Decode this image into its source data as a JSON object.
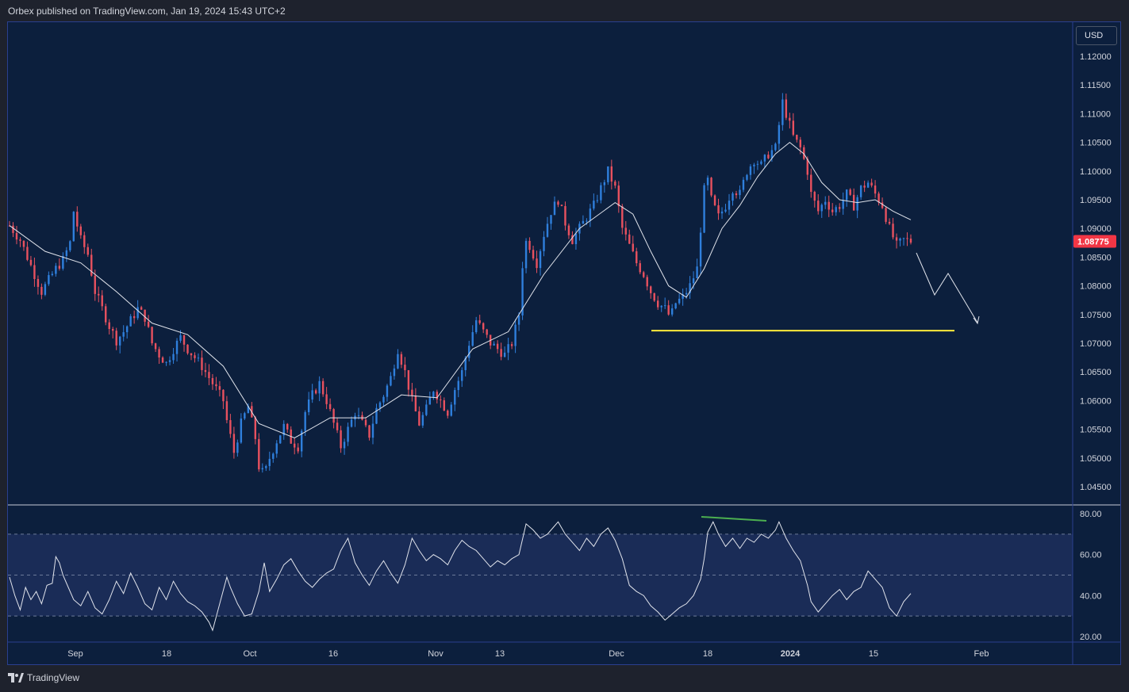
{
  "header": {
    "publisher_text": "Orbex published on TradingView.com, Jan 19, 2024 15:43 UTC+2"
  },
  "toolbar": {
    "currency_label": "USD"
  },
  "footer": {
    "brand": "TradingView",
    "logo_icon": "tradingview-logo-icon"
  },
  "colors": {
    "background": "#0c1f3d",
    "up_candle": "#2f7fdc",
    "down_candle": "#e8515f",
    "moving_average": "#e0e3eb",
    "support_line": "#ffeb3b",
    "divergence_line": "#4caf50",
    "current_price_tag": "#f23645",
    "rsi_band": "#1c2e5a"
  },
  "chart_data": {
    "type": "candlestick",
    "symbol_quote_currency": "USD",
    "current_price": "1.08775",
    "price_axis": {
      "ticks": [
        "1.12000",
        "1.11500",
        "1.11000",
        "1.10500",
        "1.10000",
        "1.09500",
        "1.09000",
        "1.08500",
        "1.08000",
        "1.07500",
        "1.07000",
        "1.06500",
        "1.06000",
        "1.05500",
        "1.05000",
        "1.04500"
      ],
      "ylim": [
        1.0425,
        1.1225
      ]
    },
    "rsi_axis": {
      "ticks": [
        "80.00",
        "60.00",
        "40.00",
        "20.00"
      ],
      "ylim": [
        18,
        83
      ],
      "band_upper": 70,
      "band_middle": 50,
      "band_lower": 30
    },
    "time_axis": {
      "ticks": [
        "Sep",
        "18",
        "Oct",
        "16",
        "Nov",
        "13",
        "Dec",
        "18",
        "2024",
        "15",
        "Feb"
      ]
    },
    "price_path": [
      [
        0,
        1.0905
      ],
      [
        6,
        1.088
      ],
      [
        10,
        1.085
      ],
      [
        14,
        1.082
      ],
      [
        18,
        1.079
      ],
      [
        22,
        1.081
      ],
      [
        26,
        1.083
      ],
      [
        30,
        1.0845
      ],
      [
        34,
        1.0875
      ],
      [
        36,
        1.093
      ],
      [
        40,
        1.088
      ],
      [
        44,
        1.0855
      ],
      [
        48,
        1.079
      ],
      [
        52,
        1.076
      ],
      [
        56,
        1.073
      ],
      [
        60,
        1.0705
      ],
      [
        64,
        1.072
      ],
      [
        68,
        1.074
      ],
      [
        72,
        1.076
      ],
      [
        76,
        1.0745
      ],
      [
        80,
        1.07
      ],
      [
        84,
        1.068
      ],
      [
        88,
        1.0665
      ],
      [
        92,
        1.069
      ],
      [
        96,
        1.071
      ],
      [
        100,
        1.069
      ],
      [
        104,
        1.0675
      ],
      [
        108,
        1.066
      ],
      [
        112,
        1.064
      ],
      [
        116,
        1.062
      ],
      [
        120,
        1.06
      ],
      [
        122,
        1.0565
      ],
      [
        126,
        1.051
      ],
      [
        130,
        1.056
      ],
      [
        134,
        1.059
      ],
      [
        138,
        1.0535
      ],
      [
        140,
        1.0485
      ],
      [
        143,
        1.047
      ],
      [
        146,
        1.05
      ],
      [
        150,
        1.053
      ],
      [
        154,
        1.0555
      ],
      [
        158,
        1.053
      ],
      [
        162,
        1.052
      ],
      [
        166,
        1.058
      ],
      [
        170,
        1.061
      ],
      [
        174,
        1.063
      ],
      [
        178,
        1.06
      ],
      [
        182,
        1.056
      ],
      [
        186,
        1.052
      ],
      [
        190,
        1.055
      ],
      [
        194,
        1.058
      ],
      [
        198,
        1.056
      ],
      [
        202,
        1.054
      ],
      [
        206,
        1.0585
      ],
      [
        210,
        1.061
      ],
      [
        214,
        1.064
      ],
      [
        218,
        1.069
      ],
      [
        222,
        1.065
      ],
      [
        226,
        1.06
      ],
      [
        230,
        1.056
      ],
      [
        234,
        1.0585
      ],
      [
        238,
        1.062
      ],
      [
        242,
        1.06
      ],
      [
        246,
        1.058
      ],
      [
        250,
        1.062
      ],
      [
        254,
        1.065
      ],
      [
        258,
        1.07
      ],
      [
        262,
        1.074
      ],
      [
        266,
        1.072
      ],
      [
        270,
        1.07
      ],
      [
        274,
        1.069
      ],
      [
        278,
        1.068
      ],
      [
        282,
        1.07
      ],
      [
        286,
        1.075
      ],
      [
        289,
        1.088
      ],
      [
        292,
        1.087
      ],
      [
        296,
        1.084
      ],
      [
        300,
        1.089
      ],
      [
        304,
        1.093
      ],
      [
        308,
        1.095
      ],
      [
        312,
        1.091
      ],
      [
        316,
        1.088
      ],
      [
        320,
        1.09
      ],
      [
        324,
        1.092
      ],
      [
        328,
        1.094
      ],
      [
        332,
        1.097
      ],
      [
        336,
        1.1
      ],
      [
        340,
        1.097
      ],
      [
        344,
        1.09
      ],
      [
        348,
        1.087
      ],
      [
        352,
        1.084
      ],
      [
        356,
        1.082
      ],
      [
        360,
        1.079
      ],
      [
        364,
        1.077
      ],
      [
        368,
        1.076
      ],
      [
        371,
        1.0745
      ],
      [
        374,
        1.077
      ],
      [
        378,
        1.078
      ],
      [
        382,
        1.08
      ],
      [
        386,
        1.083
      ],
      [
        388,
        1.09
      ],
      [
        391,
        1.1
      ],
      [
        394,
        1.095
      ],
      [
        398,
        1.092
      ],
      [
        402,
        1.094
      ],
      [
        406,
        1.097
      ],
      [
        410,
        1.096
      ],
      [
        414,
        1.1
      ],
      [
        418,
        1.102
      ],
      [
        422,
        1.101
      ],
      [
        426,
        1.103
      ],
      [
        430,
        1.104
      ],
      [
        434,
        1.112
      ],
      [
        436,
        1.11
      ],
      [
        440,
        1.106
      ],
      [
        444,
        1.104
      ],
      [
        448,
        1.1
      ],
      [
        450,
        1.096
      ],
      [
        454,
        1.093
      ],
      [
        458,
        1.095
      ],
      [
        462,
        1.093
      ],
      [
        466,
        1.094
      ],
      [
        470,
        1.096
      ],
      [
        474,
        1.094
      ],
      [
        478,
        1.097
      ],
      [
        482,
        1.098
      ],
      [
        486,
        1.096
      ],
      [
        490,
        1.094
      ],
      [
        494,
        1.09
      ],
      [
        498,
        1.087
      ],
      [
        502,
        1.088
      ],
      [
        506,
        1.0878
      ]
    ],
    "moving_average_path": [
      [
        0,
        1.0905
      ],
      [
        20,
        1.086
      ],
      [
        40,
        1.084
      ],
      [
        60,
        1.079
      ],
      [
        80,
        1.0735
      ],
      [
        100,
        1.0715
      ],
      [
        120,
        1.066
      ],
      [
        140,
        1.056
      ],
      [
        160,
        1.0535
      ],
      [
        180,
        1.057
      ],
      [
        200,
        1.057
      ],
      [
        220,
        1.061
      ],
      [
        240,
        1.0605
      ],
      [
        260,
        1.069
      ],
      [
        280,
        1.072
      ],
      [
        300,
        1.082
      ],
      [
        320,
        1.09
      ],
      [
        340,
        1.0945
      ],
      [
        350,
        1.0925
      ],
      [
        360,
        1.086
      ],
      [
        370,
        1.08
      ],
      [
        380,
        1.078
      ],
      [
        390,
        1.083
      ],
      [
        400,
        1.09
      ],
      [
        410,
        1.094
      ],
      [
        420,
        1.099
      ],
      [
        430,
        1.103
      ],
      [
        438,
        1.105
      ],
      [
        446,
        1.103
      ],
      [
        456,
        1.098
      ],
      [
        466,
        1.095
      ],
      [
        476,
        1.0945
      ],
      [
        486,
        1.095
      ],
      [
        496,
        1.093
      ],
      [
        506,
        1.0915
      ]
    ],
    "rsi_path": [
      [
        0,
        49
      ],
      [
        3,
        40
      ],
      [
        6,
        33
      ],
      [
        9,
        44
      ],
      [
        12,
        38
      ],
      [
        15,
        42
      ],
      [
        18,
        36
      ],
      [
        21,
        45
      ],
      [
        24,
        46
      ],
      [
        26,
        59
      ],
      [
        28,
        56
      ],
      [
        30,
        50
      ],
      [
        33,
        44
      ],
      [
        36,
        38
      ],
      [
        40,
        35
      ],
      [
        44,
        42
      ],
      [
        48,
        34
      ],
      [
        52,
        31
      ],
      [
        56,
        38
      ],
      [
        60,
        47
      ],
      [
        64,
        41
      ],
      [
        68,
        51
      ],
      [
        72,
        44
      ],
      [
        76,
        36
      ],
      [
        80,
        33
      ],
      [
        84,
        44
      ],
      [
        88,
        38
      ],
      [
        92,
        47
      ],
      [
        96,
        41
      ],
      [
        100,
        37
      ],
      [
        104,
        35
      ],
      [
        108,
        32
      ],
      [
        112,
        27
      ],
      [
        114,
        23
      ],
      [
        118,
        36
      ],
      [
        122,
        49
      ],
      [
        124,
        44
      ],
      [
        128,
        36
      ],
      [
        132,
        30
      ],
      [
        136,
        31
      ],
      [
        140,
        42
      ],
      [
        143,
        56
      ],
      [
        146,
        42
      ],
      [
        150,
        48
      ],
      [
        154,
        55
      ],
      [
        158,
        58
      ],
      [
        162,
        52
      ],
      [
        166,
        47
      ],
      [
        170,
        44
      ],
      [
        174,
        48
      ],
      [
        178,
        51
      ],
      [
        182,
        53
      ],
      [
        186,
        62
      ],
      [
        190,
        68
      ],
      [
        194,
        56
      ],
      [
        198,
        50
      ],
      [
        202,
        45
      ],
      [
        206,
        52
      ],
      [
        210,
        57
      ],
      [
        214,
        51
      ],
      [
        218,
        46
      ],
      [
        222,
        55
      ],
      [
        226,
        68
      ],
      [
        230,
        62
      ],
      [
        234,
        57
      ],
      [
        238,
        60
      ],
      [
        242,
        58
      ],
      [
        246,
        55
      ],
      [
        250,
        62
      ],
      [
        254,
        67
      ],
      [
        258,
        64
      ],
      [
        262,
        62
      ],
      [
        266,
        58
      ],
      [
        270,
        54
      ],
      [
        274,
        57
      ],
      [
        278,
        55
      ],
      [
        282,
        58
      ],
      [
        286,
        60
      ],
      [
        290,
        75
      ],
      [
        294,
        72
      ],
      [
        298,
        68
      ],
      [
        302,
        70
      ],
      [
        306,
        74
      ],
      [
        308,
        76
      ],
      [
        312,
        70
      ],
      [
        316,
        66
      ],
      [
        320,
        62
      ],
      [
        324,
        68
      ],
      [
        328,
        64
      ],
      [
        332,
        70
      ],
      [
        336,
        73
      ],
      [
        340,
        67
      ],
      [
        344,
        58
      ],
      [
        348,
        45
      ],
      [
        352,
        42
      ],
      [
        356,
        40
      ],
      [
        360,
        35
      ],
      [
        364,
        32
      ],
      [
        368,
        28
      ],
      [
        372,
        31
      ],
      [
        376,
        34
      ],
      [
        380,
        36
      ],
      [
        384,
        40
      ],
      [
        388,
        48
      ],
      [
        390,
        58
      ],
      [
        392,
        71
      ],
      [
        395,
        76
      ],
      [
        398,
        70
      ],
      [
        402,
        64
      ],
      [
        406,
        68
      ],
      [
        410,
        63
      ],
      [
        414,
        68
      ],
      [
        418,
        66
      ],
      [
        422,
        70
      ],
      [
        426,
        68
      ],
      [
        430,
        72
      ],
      [
        432,
        76
      ],
      [
        436,
        68
      ],
      [
        440,
        62
      ],
      [
        444,
        57
      ],
      [
        448,
        45
      ],
      [
        450,
        37
      ],
      [
        454,
        32
      ],
      [
        458,
        36
      ],
      [
        462,
        40
      ],
      [
        466,
        43
      ],
      [
        470,
        38
      ],
      [
        474,
        42
      ],
      [
        478,
        44
      ],
      [
        482,
        52
      ],
      [
        486,
        48
      ],
      [
        490,
        44
      ],
      [
        494,
        34
      ],
      [
        498,
        30
      ],
      [
        502,
        37
      ],
      [
        506,
        41
      ]
    ],
    "support_level": 1.0722,
    "projection_note": "zigzag arrow projection toward support"
  }
}
